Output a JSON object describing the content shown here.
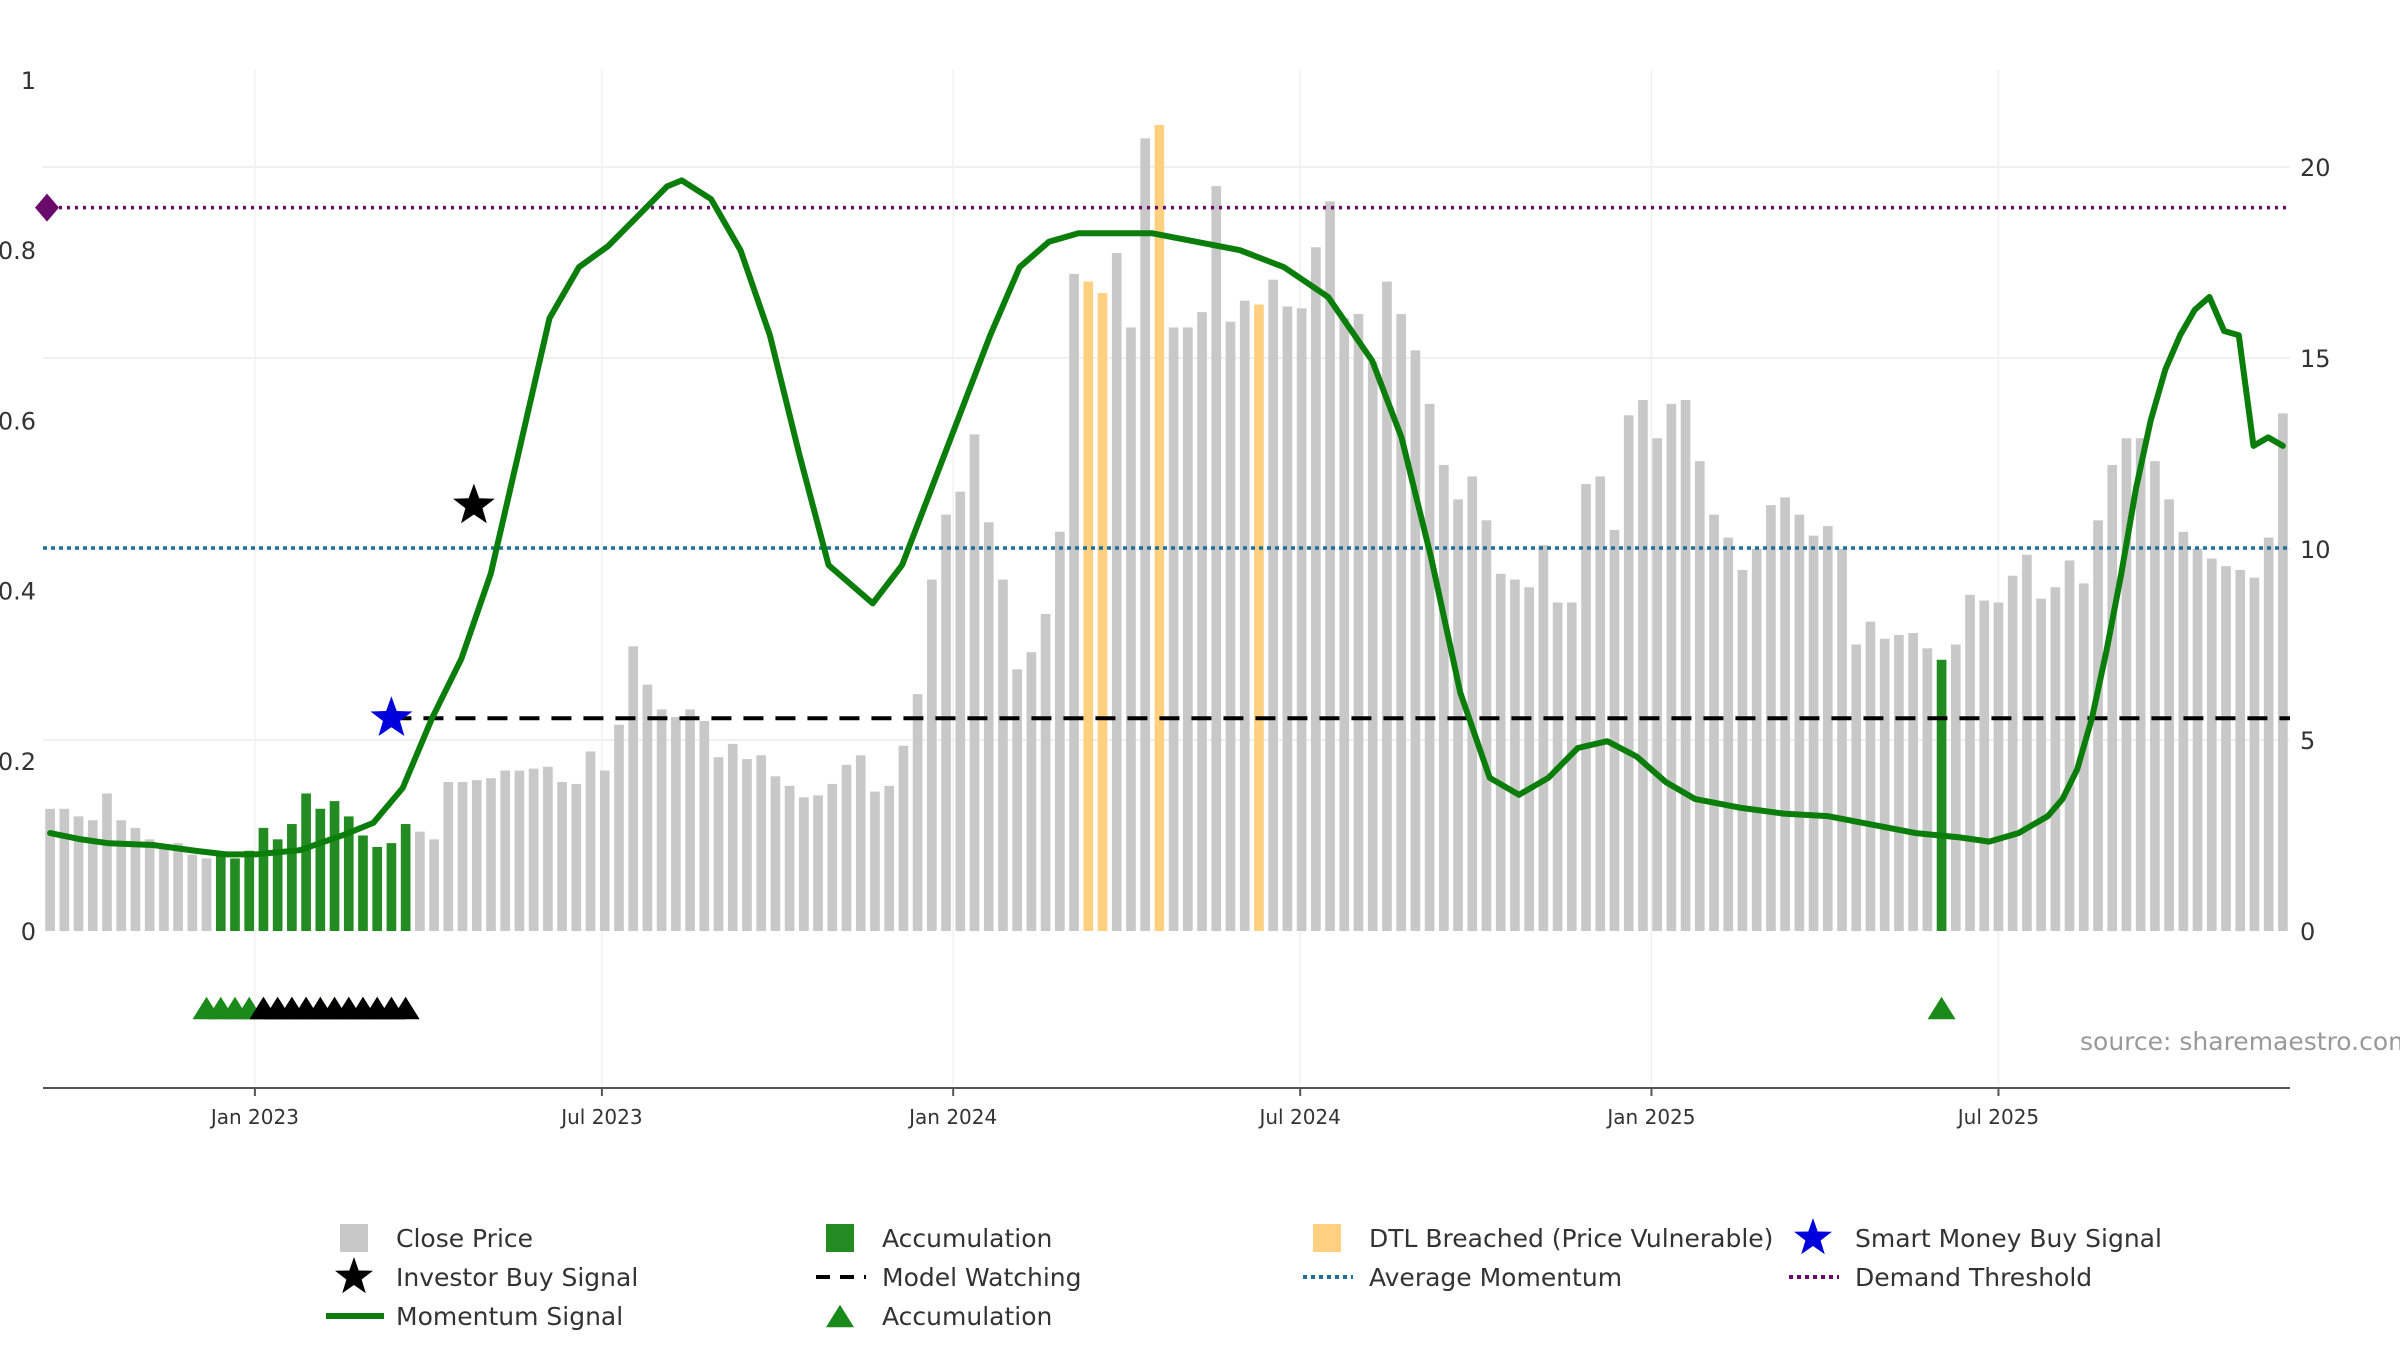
{
  "chart_data": {
    "type": "bar",
    "title": "",
    "source_label": "source: sharemaestro.com",
    "colors": {
      "close_price": "#c8c8c8",
      "accumulation": "#228b22",
      "dtl_breached": "#ffd080",
      "momentum": "#0a7d0a",
      "model_watching": "#000000",
      "average_momentum": "#1f6f99",
      "demand_threshold": "#6a0a6a",
      "investor_star": "#000000",
      "smart_money_star": "#0000dd",
      "accum_triangle": "#1a8a1a",
      "watch_triangle": "#000000"
    },
    "x_axis": {
      "tick_labels": [
        "Jan 2023",
        "Jul 2023",
        "Jan 2024",
        "Jul 2024",
        "Jan 2025",
        "Jul 2025"
      ],
      "tick_weeks": [
        14.4,
        38.8,
        63.5,
        87.9,
        112.6,
        137.0
      ],
      "week_range": [
        0,
        148
      ]
    },
    "y_left": {
      "label": "",
      "range": [
        0,
        1
      ],
      "ticks": [
        0,
        0.2,
        0.4,
        0.6,
        0.8,
        1
      ],
      "tick_labels": [
        "0",
        "0.2",
        "0.4",
        "0.6",
        "0.8",
        "1"
      ]
    },
    "y_right": {
      "label": "",
      "range": [
        0,
        20
      ],
      "ticks": [
        0,
        5,
        10,
        15,
        20
      ],
      "tick_labels": [
        "0",
        "5",
        "10",
        "15",
        "20"
      ]
    },
    "price_bars": {
      "values": [
        3.2,
        3.2,
        3.0,
        2.9,
        3.6,
        2.9,
        2.7,
        2.4,
        2.2,
        2.3,
        2.0,
        1.9,
        2.0,
        1.9,
        2.1,
        2.7,
        2.4,
        2.8,
        3.6,
        3.2,
        3.4,
        3.0,
        2.5,
        2.2,
        2.3,
        2.8,
        2.6,
        2.4,
        3.9,
        3.9,
        3.95,
        4.0,
        4.2,
        4.2,
        4.25,
        4.3,
        3.9,
        3.85,
        4.7,
        4.2,
        5.4,
        7.45,
        6.45,
        5.8,
        5.6,
        5.8,
        5.5,
        4.55,
        4.9,
        4.5,
        4.6,
        4.05,
        3.8,
        3.5,
        3.55,
        3.85,
        4.35,
        4.6,
        3.65,
        3.8,
        4.85,
        6.2,
        9.2,
        10.9,
        11.5,
        13.0,
        10.7,
        9.2,
        6.85,
        7.3,
        8.3,
        10.45,
        17.2,
        17.0,
        16.7,
        17.75,
        15.8,
        20.75,
        21.1,
        15.8,
        15.8,
        16.2,
        19.5,
        15.95,
        16.5,
        16.4,
        17.05,
        16.35,
        16.3,
        17.9,
        19.1,
        16.05,
        16.15,
        14.9,
        17.0,
        16.15,
        15.2,
        13.8,
        12.2,
        11.3,
        11.9,
        10.75,
        9.35,
        9.2,
        9.0,
        10.1,
        8.6,
        8.6,
        11.7,
        11.9,
        10.5,
        13.5,
        13.9,
        12.9,
        13.8,
        13.9,
        12.3,
        10.9,
        10.3,
        9.45,
        10.0,
        11.15,
        11.35,
        10.9,
        10.35,
        10.6,
        10.0,
        7.5,
        8.1,
        7.65,
        7.75,
        7.8,
        7.4,
        7.1,
        7.5,
        8.8,
        8.65,
        8.6,
        9.3,
        9.85,
        8.7,
        9.0,
        9.7,
        9.1,
        10.75,
        12.2,
        12.9,
        12.9,
        12.3,
        11.3,
        10.45,
        10.0,
        9.75,
        9.55,
        9.45,
        9.25,
        10.3,
        13.55
      ]
    },
    "accumulation_weeks": [
      12,
      13,
      14,
      15,
      16,
      17,
      18,
      19,
      20,
      21,
      22,
      23,
      24,
      25,
      133
    ],
    "dtl_weeks": [
      73,
      74,
      78,
      85
    ],
    "momentum_signal": {
      "points": [
        [
          0,
          0.115
        ],
        [
          2,
          0.108
        ],
        [
          4,
          0.103
        ],
        [
          7,
          0.101
        ],
        [
          10,
          0.094
        ],
        [
          12,
          0.09
        ],
        [
          14,
          0.09
        ],
        [
          17,
          0.095
        ],
        [
          20,
          0.113
        ],
        [
          22,
          0.127
        ],
        [
          24,
          0.168
        ],
        [
          26,
          0.25
        ],
        [
          28,
          0.32
        ],
        [
          30,
          0.42
        ],
        [
          32,
          0.57
        ],
        [
          34,
          0.72
        ],
        [
          36,
          0.78
        ],
        [
          38,
          0.805
        ],
        [
          40,
          0.84
        ],
        [
          42,
          0.875
        ],
        [
          43,
          0.882
        ],
        [
          45,
          0.86
        ],
        [
          47,
          0.8
        ],
        [
          49,
          0.7
        ],
        [
          51,
          0.56
        ],
        [
          53,
          0.43
        ],
        [
          55,
          0.4
        ],
        [
          56,
          0.385
        ],
        [
          58,
          0.43
        ],
        [
          60,
          0.52
        ],
        [
          62,
          0.61
        ],
        [
          64,
          0.7
        ],
        [
          66,
          0.78
        ],
        [
          68,
          0.81
        ],
        [
          70,
          0.82
        ],
        [
          72,
          0.82
        ],
        [
          75,
          0.82
        ],
        [
          78,
          0.81
        ],
        [
          81,
          0.8
        ],
        [
          84,
          0.78
        ],
        [
          87,
          0.745
        ],
        [
          90,
          0.67
        ],
        [
          92,
          0.58
        ],
        [
          94,
          0.44
        ],
        [
          96,
          0.28
        ],
        [
          98,
          0.18
        ],
        [
          100,
          0.16
        ],
        [
          102,
          0.18
        ],
        [
          104,
          0.215
        ],
        [
          106,
          0.223
        ],
        [
          108,
          0.205
        ],
        [
          110,
          0.175
        ],
        [
          112,
          0.155
        ],
        [
          115,
          0.145
        ],
        [
          118,
          0.138
        ],
        [
          121,
          0.135
        ],
        [
          124,
          0.125
        ],
        [
          127,
          0.115
        ],
        [
          130,
          0.11
        ],
        [
          132,
          0.105
        ],
        [
          134,
          0.115
        ],
        [
          136,
          0.135
        ],
        [
          137,
          0.155
        ],
        [
          138,
          0.19
        ],
        [
          139,
          0.25
        ],
        [
          140,
          0.33
        ],
        [
          141,
          0.42
        ],
        [
          142,
          0.52
        ],
        [
          143,
          0.6
        ],
        [
          144,
          0.66
        ],
        [
          145,
          0.7
        ],
        [
          146,
          0.73
        ],
        [
          147,
          0.745
        ],
        [
          148,
          0.705
        ],
        [
          149,
          0.7
        ],
        [
          150,
          0.57
        ],
        [
          151,
          0.58
        ],
        [
          152,
          0.57
        ]
      ]
    },
    "average_momentum": 0.45,
    "demand_threshold": 0.85,
    "model_watching": {
      "level": 0.25,
      "start_week": 24
    },
    "investor_buy_signal": {
      "week": 29.8,
      "value": 0.5
    },
    "smart_money_buy_signal": {
      "week": 24.0,
      "value": 0.25
    },
    "accumulation_markers": {
      "weeks": [
        11,
        12,
        13,
        14,
        15,
        16,
        17,
        18,
        19,
        20,
        21,
        22,
        23,
        24,
        133
      ]
    },
    "watching_markers": {
      "weeks": [
        15,
        16,
        17,
        18,
        19,
        20,
        21,
        22,
        23,
        24,
        25
      ]
    },
    "legend": [
      {
        "label": "Close Price",
        "symbol": "square",
        "color_key": "close_price"
      },
      {
        "label": "Accumulation",
        "symbol": "square",
        "color_key": "accumulation"
      },
      {
        "label": "DTL Breached (Price Vulnerable)",
        "symbol": "square",
        "color_key": "dtl_breached"
      },
      {
        "label": "Smart Money Buy Signal",
        "symbol": "star",
        "color_key": "smart_money_star"
      },
      {
        "label": "Investor Buy Signal",
        "symbol": "star",
        "color_key": "investor_star"
      },
      {
        "label": "Model Watching",
        "symbol": "dashed",
        "color_key": "model_watching"
      },
      {
        "label": "Average Momentum",
        "symbol": "dotted",
        "color_key": "average_momentum"
      },
      {
        "label": "Demand Threshold",
        "symbol": "dotted",
        "color_key": "demand_threshold"
      },
      {
        "label": "Momentum Signal",
        "symbol": "line",
        "color_key": "momentum"
      },
      {
        "label": "Accumulation",
        "symbol": "triangle",
        "color_key": "accum_triangle"
      }
    ]
  }
}
